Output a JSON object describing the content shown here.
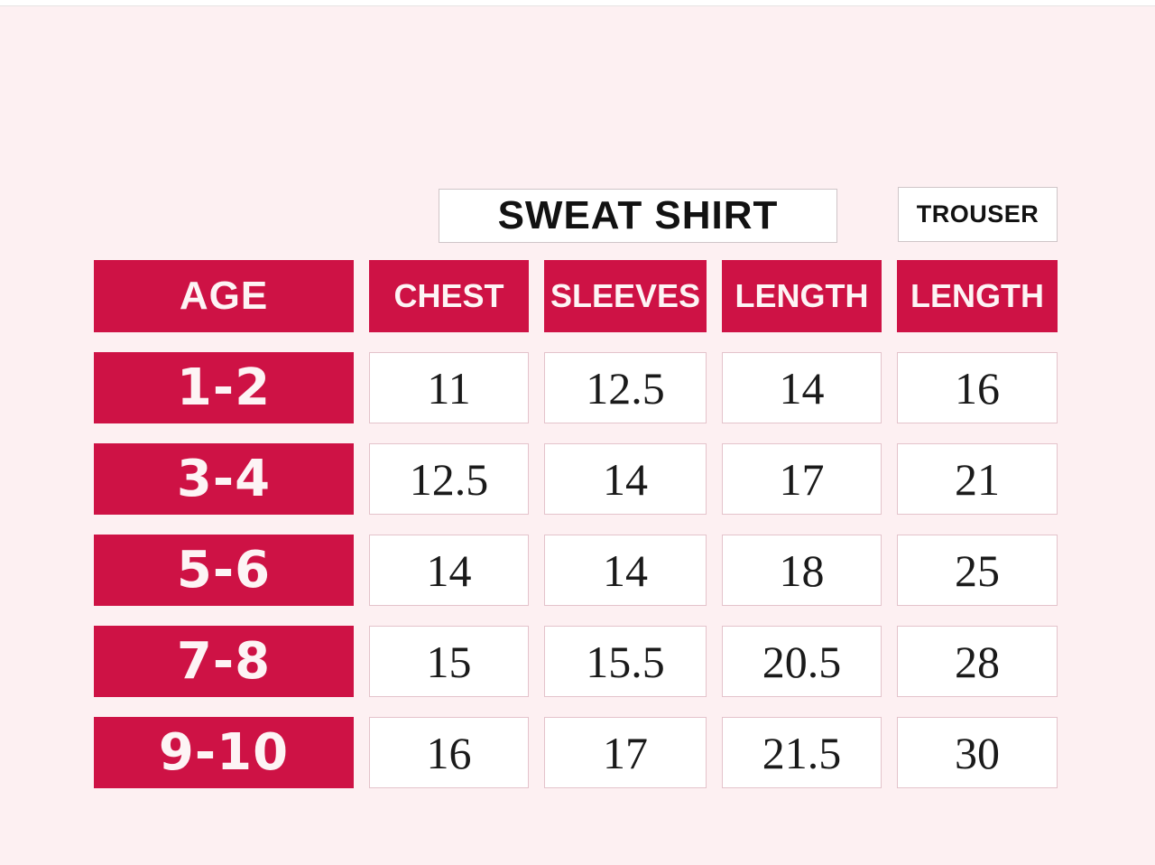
{
  "colors": {
    "background": "#FDF0F2",
    "accent_red": "#CE1245",
    "cell_background": "#FFFFFF",
    "cell_border": "#E4C3CB",
    "group_box_border": "#CFC5C8",
    "number_text": "#1A1A1A",
    "header_text": "#FDF4F5"
  },
  "group_headers": {
    "sweat_shirt": "SWEAT SHIRT",
    "trouser": "TROUSER"
  },
  "table": {
    "corner_label": "AGE",
    "columns": [
      "CHEST",
      "SLEEVES",
      "LENGTH",
      "LENGTH"
    ],
    "rows": [
      {
        "age": "1-2",
        "chest": "11",
        "sleeves": "12.5",
        "length": "14",
        "trouser_length": "16"
      },
      {
        "age": "3-4",
        "chest": "12.5",
        "sleeves": "14",
        "length": "17",
        "trouser_length": "21"
      },
      {
        "age": "5-6",
        "chest": "14",
        "sleeves": "14",
        "length": "18",
        "trouser_length": "25"
      },
      {
        "age": "7-8",
        "chest": "15",
        "sleeves": "15.5",
        "length": "20.5",
        "trouser_length": "28"
      },
      {
        "age": "9-10",
        "chest": "16",
        "sleeves": "17",
        "length": "21.5",
        "trouser_length": "30"
      }
    ]
  },
  "chart_data": {
    "type": "table",
    "row_header": "AGE",
    "categories": [
      "1-2",
      "3-4",
      "5-6",
      "7-8",
      "9-10"
    ],
    "groups": [
      {
        "group": "SWEAT SHIRT",
        "columns": [
          {
            "name": "CHEST",
            "values": [
              11,
              12.5,
              14,
              15,
              16
            ]
          },
          {
            "name": "SLEEVES",
            "values": [
              12.5,
              14,
              14,
              15.5,
              17
            ]
          },
          {
            "name": "LENGTH",
            "values": [
              14,
              17,
              18,
              20.5,
              21.5
            ]
          }
        ]
      },
      {
        "group": "TROUSER",
        "columns": [
          {
            "name": "LENGTH",
            "values": [
              16,
              21,
              25,
              28,
              30
            ]
          }
        ]
      }
    ]
  }
}
